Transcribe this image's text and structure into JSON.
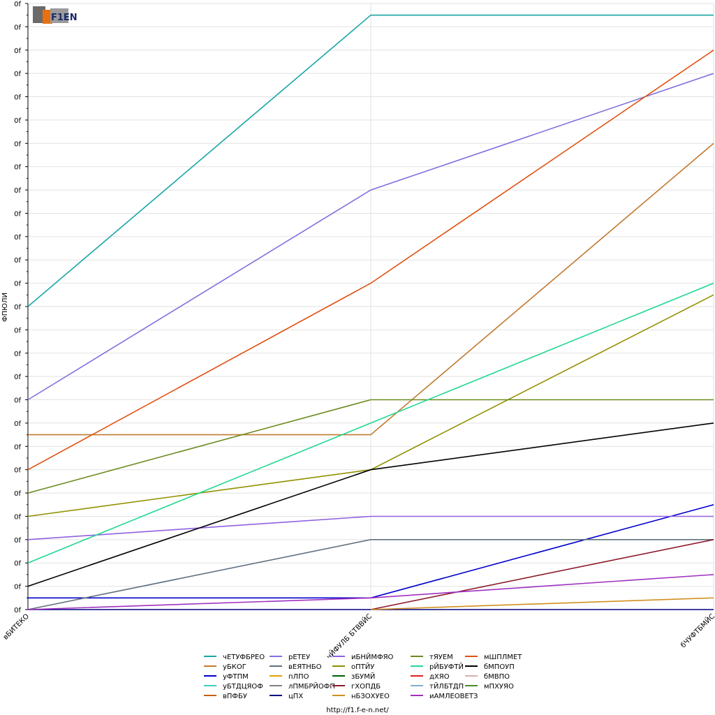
{
  "logo": {
    "text": "F1EN"
  },
  "footer": {
    "url": "http://f1.f-e-n.net/"
  },
  "chart_data": {
    "type": "line",
    "title": "",
    "xlabel": "",
    "ylabel": "ФПЮЛИ",
    "categories": [
      "вБИТЕКО",
      "чЙФУЛБ БТВВЙС",
      "бЧУФТБМЙС"
    ],
    "y_tick_labels": [
      "0f",
      "0f",
      "0f",
      "0f",
      "0f",
      "0f",
      "0f",
      "0f",
      "0f",
      "0f",
      "0f",
      "0f",
      "0f",
      "0f",
      "0f",
      "0f",
      "0f",
      "0f",
      "0f",
      "0f",
      "0f",
      "0f",
      "0f",
      "0f",
      "0f",
      "0f",
      "0f"
    ],
    "ylim": [
      0,
      26
    ],
    "grid": true,
    "legend": "bottom",
    "series": [
      {
        "name": "чЕТУФБРЕО",
        "color": "#1aa6a6",
        "values": [
          13,
          25.5,
          25.5
        ]
      },
      {
        "name": "уБКОГ",
        "color": "#c07a30",
        "values": [
          7.5,
          7.5,
          20
        ]
      },
      {
        "name": "уФТПМ",
        "color": "#0000cc",
        "values": [
          0.5,
          0.5,
          4.5
        ]
      },
      {
        "name": "уБТДЦЯОФ",
        "color": "#40d0c0",
        "values": [
          null,
          null,
          null
        ]
      },
      {
        "name": "вПФБУ",
        "color": "#c86010",
        "values": [
          null,
          null,
          null
        ]
      },
      {
        "name": "рЕТЕУ",
        "color": "#8070e0",
        "values": [
          9,
          18,
          23
        ]
      },
      {
        "name": "вЕЯТНБО",
        "color": "#607080",
        "values": [
          0,
          3,
          3
        ]
      },
      {
        "name": "пЛПО",
        "color": "#e0a000",
        "values": [
          null,
          null,
          null
        ]
      },
      {
        "name": "лПМБРЙОФП",
        "color": "#808080",
        "values": [
          null,
          null,
          null
        ]
      },
      {
        "name": "цПХ",
        "color": "#000080",
        "values": [
          0,
          0,
          0
        ]
      },
      {
        "name": "иБНЙМФЯО",
        "color": "#9060e0",
        "values": [
          3,
          4,
          4
        ]
      },
      {
        "name": "оПТЙУ",
        "color": "#909000",
        "values": [
          4,
          6,
          13.5
        ]
      },
      {
        "name": "зБУМЙ",
        "color": "#006000",
        "values": [
          null,
          null,
          null
        ]
      },
      {
        "name": "гХОПДБ",
        "color": "#8b1a2a",
        "values": [
          null,
          0,
          3
        ]
      },
      {
        "name": "нБЗОХУЕО",
        "color": "#d09020",
        "values": [
          null,
          0,
          0.5
        ]
      },
      {
        "name": "тЯУЕМ",
        "color": "#6b8a20",
        "values": [
          5,
          9,
          9
        ]
      },
      {
        "name": "рЙБУФТЙ",
        "color": "#20d890",
        "values": [
          2,
          8,
          14
        ]
      },
      {
        "name": "дХЯО",
        "color": "#e02020",
        "values": [
          null,
          null,
          null
        ]
      },
      {
        "name": "тЙЛБТДП",
        "color": "#80b0d0",
        "values": [
          null,
          null,
          null
        ]
      },
      {
        "name": "иАМЛЕОВЕТЗ",
        "color": "#a030c0",
        "values": [
          0,
          0.5,
          1.5
        ]
      },
      {
        "name": "мШПЛМЕТ",
        "color": "#e05010",
        "values": [
          6,
          14,
          24
        ]
      },
      {
        "name": "бМПОУП",
        "color": "#000000",
        "values": [
          1,
          6,
          8
        ]
      },
      {
        "name": "бМВПО",
        "color": "#d8b0b0",
        "values": [
          null,
          null,
          null
        ]
      },
      {
        "name": "мПХУЯО",
        "color": "#4a8a20",
        "values": [
          null,
          null,
          null
        ]
      }
    ]
  }
}
